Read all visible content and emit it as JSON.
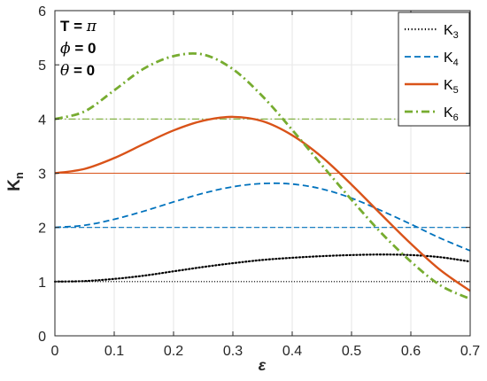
{
  "chart_data": {
    "type": "line",
    "xlabel": "ε",
    "ylabel": "K",
    "ylabel_sub": "n",
    "xlim": [
      0,
      0.7
    ],
    "ylim": [
      0,
      6
    ],
    "xticks": [
      "0",
      "0.1",
      "0.2",
      "0.3",
      "0.4",
      "0.5",
      "0.6",
      "0.7"
    ],
    "yticks": [
      "0",
      "1",
      "2",
      "3",
      "4",
      "5",
      "6"
    ],
    "grid": true,
    "legend_position": "top-right",
    "annotations": [
      {
        "sym": "T",
        "eq": " = ",
        "val": "π"
      },
      {
        "sym": "ϕ",
        "eq": " = ",
        "val": "0"
      },
      {
        "sym": "θ",
        "eq": " = ",
        "val": "0"
      }
    ],
    "x": [
      0,
      0.05,
      0.1,
      0.15,
      0.2,
      0.25,
      0.3,
      0.35,
      0.4,
      0.45,
      0.5,
      0.55,
      0.6,
      0.65,
      0.7
    ],
    "series": [
      {
        "name": "K",
        "sub": "3",
        "color": "#000000",
        "style": "dotted",
        "baseline": 1,
        "values": [
          1.0,
          1.01,
          1.05,
          1.11,
          1.19,
          1.27,
          1.34,
          1.4,
          1.44,
          1.47,
          1.49,
          1.5,
          1.49,
          1.45,
          1.37
        ]
      },
      {
        "name": "K",
        "sub": "4",
        "color": "#0072BD",
        "style": "dashed",
        "baseline": 2,
        "values": [
          2.0,
          2.04,
          2.15,
          2.3,
          2.47,
          2.63,
          2.75,
          2.81,
          2.8,
          2.71,
          2.54,
          2.31,
          2.06,
          1.8,
          1.57
        ]
      },
      {
        "name": "K",
        "sub": "5",
        "color": "#D95319",
        "style": "solid",
        "baseline": 3,
        "values": [
          3.0,
          3.08,
          3.28,
          3.54,
          3.79,
          3.97,
          4.04,
          3.96,
          3.7,
          3.3,
          2.79,
          2.24,
          1.7,
          1.21,
          0.83
        ]
      },
      {
        "name": "K",
        "sub": "6",
        "color": "#77AC30",
        "style": "dashdot",
        "baseline": 4,
        "values": [
          4.0,
          4.14,
          4.53,
          4.93,
          5.16,
          5.19,
          4.92,
          4.42,
          3.8,
          3.15,
          2.51,
          1.9,
          1.37,
          0.93,
          0.68
        ]
      }
    ]
  }
}
